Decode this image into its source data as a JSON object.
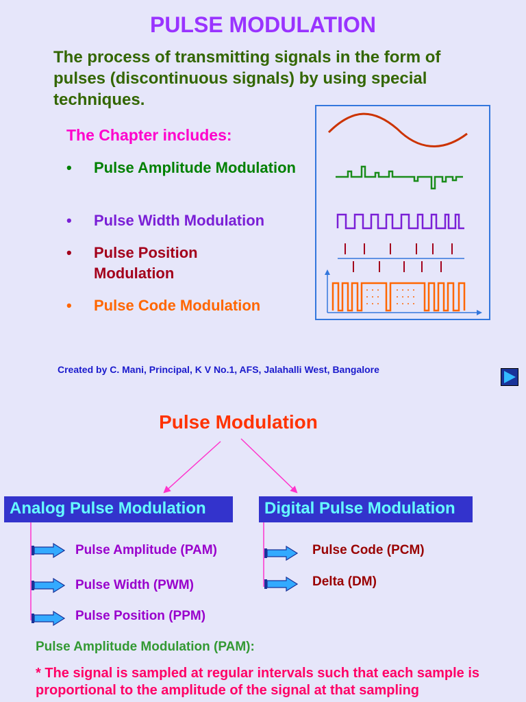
{
  "slide1": {
    "title": "PULSE MODULATION",
    "intro": "The process of transmitting signals in the form of pulses (discontinuous signals) by using special techniques.",
    "chapter_heading": "The Chapter includes:",
    "bullet_char": "•",
    "bullets": [
      {
        "label": "Pulse Amplitude Modulation",
        "color": "#008000"
      },
      {
        "label": "Pulse Width Modulation",
        "color": "#7a1fd6"
      },
      {
        "label": "Pulse Position Modulation",
        "color": "#a3001b"
      },
      {
        "label": "Pulse Code Modulation",
        "color": "#ff6600"
      }
    ],
    "credit": "Created by C. Mani, Principal, K V No.1, AFS, Jalahalli West, Bangalore",
    "next_icon": "play-forward-icon"
  },
  "slide2": {
    "heading": "Pulse Modulation",
    "analog": {
      "label": "Analog Pulse Modulation",
      "items": [
        "Pulse Amplitude (PAM)",
        "Pulse Width (PWM)",
        "Pulse Position (PPM)"
      ],
      "item_color": "#9900cc"
    },
    "digital": {
      "label": "Digital Pulse Modulation",
      "items": [
        "Pulse Code (PCM)",
        "Delta (DM)"
      ],
      "item_color": "#990000"
    },
    "pam_heading": "Pulse Amplitude Modulation (PAM):",
    "pam_text": "* The signal is sampled at regular intervals such that each sample is proportional to the amplitude of the signal at that sampling"
  },
  "colors": {
    "background": "#e6e6fa",
    "box_fill": "#3333cc",
    "box_text": "#66ffff",
    "connector": "#ff33cc",
    "arrow": "#33aaff"
  }
}
